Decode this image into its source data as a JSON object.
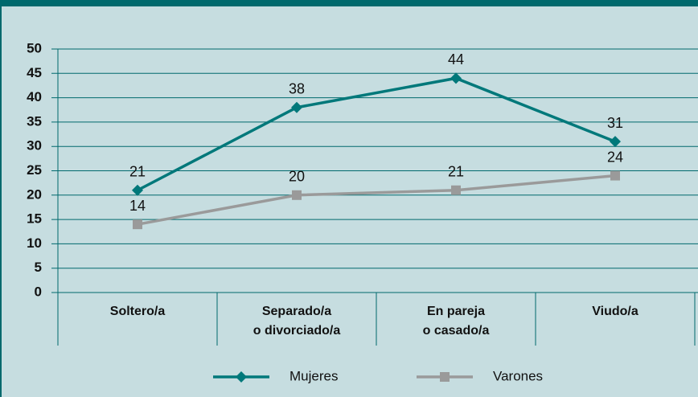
{
  "chart_data": {
    "type": "line",
    "categories": [
      [
        "Soltero/a"
      ],
      [
        "Separado/a",
        "o divorciado/a"
      ],
      [
        "En pareja",
        "o casado/a"
      ],
      [
        "Viudo/a"
      ]
    ],
    "series": [
      {
        "name": "Mujeres",
        "color": "#00787a",
        "marker": "diamond",
        "values": [
          21,
          38,
          44,
          31
        ]
      },
      {
        "name": "Varones",
        "color": "#9a9a9a",
        "marker": "square",
        "values": [
          14,
          20,
          21,
          24
        ]
      }
    ],
    "ylim": [
      0,
      50
    ],
    "yticks": [
      0,
      5,
      10,
      15,
      20,
      25,
      30,
      35,
      40,
      45,
      50
    ],
    "grid": true,
    "legend": "bottom"
  }
}
